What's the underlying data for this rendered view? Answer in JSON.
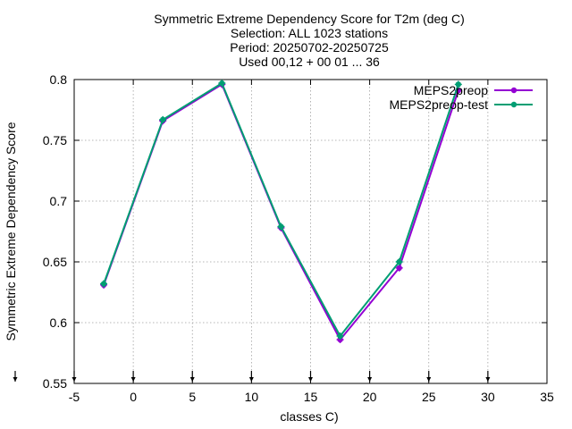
{
  "chart_data": {
    "type": "line",
    "title_lines": [
      "Symmetric Extreme Dependency Score  for T2m (deg C)",
      "Selection: ALL    1023 stations",
      "Period: 20250702-20250725",
      "Used 00,12 + 00 01 ... 36"
    ],
    "xlabel": "classes C)",
    "ylabel": "Symmetric Extreme Dependency Score",
    "xlim": [
      -5,
      35
    ],
    "ylim": [
      0.55,
      0.8
    ],
    "xticks": [
      -5,
      0,
      5,
      10,
      15,
      20,
      25,
      30,
      35
    ],
    "yticks": [
      0.55,
      0.6,
      0.65,
      0.7,
      0.75,
      0.8
    ],
    "xtick_labels": [
      "-5",
      "0",
      "5",
      "10",
      "15",
      "20",
      "25",
      "30",
      "35"
    ],
    "ytick_labels": [
      "0.55",
      "0.6",
      "0.65",
      "0.7",
      "0.75",
      "0.8"
    ],
    "grid": true,
    "legend_position": "top-right",
    "arrow_marker_x": [
      -5,
      0,
      5,
      10,
      15,
      20,
      25,
      30
    ],
    "series": [
      {
        "name": "MEPS2preop",
        "color": "#9400d3",
        "x": [
          -2.5,
          2.5,
          7.5,
          12.5,
          17.5,
          22.5,
          27.5
        ],
        "y": [
          0.631,
          0.766,
          0.796,
          0.678,
          0.586,
          0.645,
          0.791
        ]
      },
      {
        "name": "MEPS2preop-test",
        "color": "#009e73",
        "x": [
          -2.5,
          2.5,
          7.5,
          12.5,
          17.5,
          22.5,
          27.5
        ],
        "y": [
          0.632,
          0.767,
          0.797,
          0.679,
          0.589,
          0.65,
          0.796
        ]
      }
    ]
  }
}
